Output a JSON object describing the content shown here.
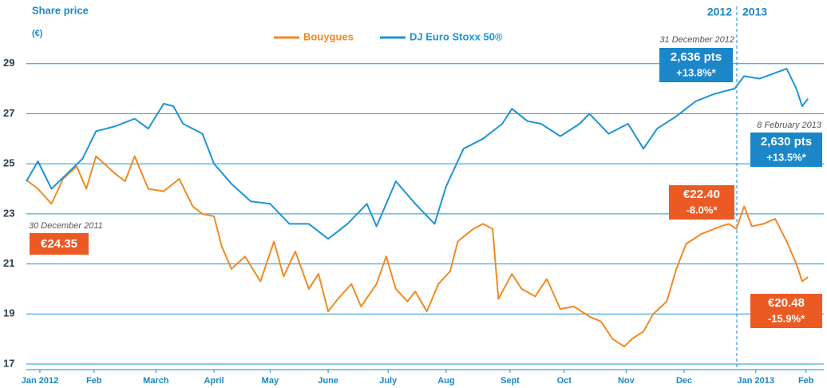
{
  "chart_data": {
    "type": "line",
    "y_axis_label": "Share price",
    "y_axis_unit": "(€)",
    "year_labels": [
      "2012",
      "2013"
    ],
    "ylim": [
      17,
      31
    ],
    "yticks": [
      17,
      19,
      21,
      23,
      25,
      27,
      29
    ],
    "xlim": [
      -1,
      405
    ],
    "xticks": [
      {
        "value": 6,
        "label": "Jan 2012"
      },
      {
        "value": 34,
        "label": "Feb"
      },
      {
        "value": 66,
        "label": "March"
      },
      {
        "value": 96,
        "label": "April"
      },
      {
        "value": 125,
        "label": "May"
      },
      {
        "value": 155,
        "label": "June"
      },
      {
        "value": 186,
        "label": "July"
      },
      {
        "value": 216,
        "label": "Aug"
      },
      {
        "value": 249,
        "label": "Sept"
      },
      {
        "value": 277,
        "label": "Oct"
      },
      {
        "value": 309,
        "label": "Nov"
      },
      {
        "value": 339,
        "label": "Dec"
      },
      {
        "value": 376,
        "label": "Jan 2013"
      },
      {
        "value": 402,
        "label": "Feb"
      }
    ],
    "grid": true,
    "series": [
      {
        "name": "Bouygues",
        "color": "#f08a24",
        "x": [
          -1,
          5,
          12,
          18,
          25,
          30,
          35,
          45,
          50,
          55,
          62,
          70,
          78,
          85,
          90,
          96,
          100,
          105,
          112,
          120,
          127,
          132,
          138,
          145,
          150,
          155,
          160,
          167,
          172,
          180,
          185,
          190,
          196,
          200,
          206,
          212,
          218,
          222,
          230,
          235,
          240,
          243,
          250,
          255,
          262,
          268,
          275,
          282,
          290,
          296,
          302,
          308,
          312,
          318,
          323,
          330,
          335,
          340,
          348,
          358,
          362,
          366,
          370,
          374,
          380,
          386,
          392,
          397,
          400,
          403
        ],
        "values": [
          24.35,
          24.0,
          23.4,
          24.4,
          24.9,
          24.0,
          25.3,
          24.6,
          24.3,
          25.3,
          24.0,
          23.9,
          24.4,
          23.3,
          23.0,
          22.9,
          21.7,
          20.8,
          21.3,
          20.3,
          21.9,
          20.5,
          21.5,
          20.0,
          20.6,
          19.1,
          19.6,
          20.2,
          19.3,
          20.2,
          21.3,
          20.0,
          19.5,
          19.9,
          19.1,
          20.2,
          20.7,
          21.9,
          22.4,
          22.6,
          22.4,
          19.6,
          20.6,
          20.0,
          19.7,
          20.4,
          19.2,
          19.3,
          18.9,
          18.7,
          18.0,
          17.7,
          18.0,
          18.3,
          19.0,
          19.5,
          20.8,
          21.8,
          22.2,
          22.5,
          22.6,
          22.4,
          23.3,
          22.5,
          22.6,
          22.8,
          21.9,
          21.0,
          20.3,
          20.48
        ]
      },
      {
        "name": "DJ Euro Stoxx 50®",
        "color": "#1e95d4",
        "x": [
          -1,
          5,
          12,
          20,
          28,
          35,
          45,
          55,
          62,
          70,
          75,
          80,
          90,
          96,
          105,
          115,
          125,
          135,
          145,
          155,
          165,
          175,
          180,
          190,
          200,
          210,
          216,
          225,
          235,
          245,
          250,
          258,
          265,
          275,
          285,
          290,
          300,
          310,
          318,
          325,
          335,
          345,
          355,
          365,
          370,
          378,
          385,
          392,
          397,
          400,
          403
        ],
        "values": [
          24.3,
          25.1,
          24.0,
          24.6,
          25.2,
          26.3,
          26.5,
          26.8,
          26.4,
          27.4,
          27.3,
          26.6,
          26.2,
          25.0,
          24.2,
          23.5,
          23.4,
          22.6,
          22.6,
          22.0,
          22.6,
          23.4,
          22.5,
          24.3,
          23.4,
          22.6,
          24.1,
          25.6,
          26.0,
          26.6,
          27.2,
          26.7,
          26.6,
          26.1,
          26.6,
          27.0,
          26.2,
          26.6,
          25.6,
          26.4,
          26.9,
          27.5,
          27.8,
          28.0,
          28.5,
          28.4,
          28.6,
          28.8,
          28.0,
          27.3,
          27.6
        ]
      }
    ],
    "annotations": [
      "30 December 2011",
      "€24.35",
      "31 December 2012",
      "2,636 pts",
      "+13.8%*",
      "8 February 2013",
      "2,630 pts",
      "+13.5%*",
      "€22.40",
      "-8.0%*",
      "€20.48",
      "-15.9%*"
    ]
  }
}
